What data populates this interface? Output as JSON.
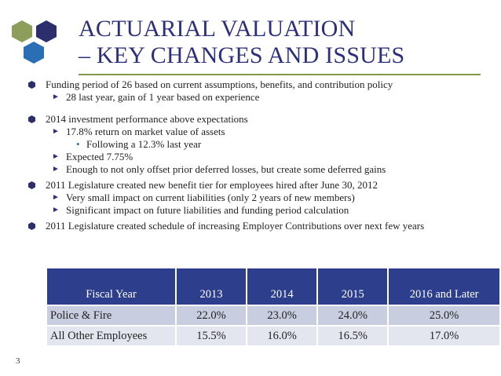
{
  "slide": {
    "title_line1": "ACTUARIAL VALUATION",
    "title_line2": "– KEY CHANGES AND ISSUES",
    "page_number": "3"
  },
  "colors": {
    "title": "#2c2f7c",
    "rule": "#7f9a4f",
    "table_header": "#2c3e8c",
    "row1": "#c8cde0",
    "row2": "#e4e6ef"
  },
  "bullets": [
    {
      "text": "Funding period of 26 based on current assumptions, benefits, and contribution policy",
      "subs": [
        {
          "text": "28 last year, gain of 1 year based on experience"
        }
      ]
    },
    {
      "text": "2014 investment performance above expectations",
      "subs": [
        {
          "text": "17.8% return on market value of assets",
          "subsub": "Following a 12.3% last year"
        },
        {
          "text": "Expected 7.75%"
        },
        {
          "text": "Enough to not only offset prior deferred losses, but create some deferred gains"
        }
      ]
    },
    {
      "text": "2011 Legislature created new benefit tier for employees hired after June 30, 2012",
      "subs": [
        {
          "text": "Very small impact on current liabilities (only 2 years of new members)"
        },
        {
          "text": "Significant impact on future liabilities and funding period calculation"
        }
      ]
    },
    {
      "text": "2011 Legislature created schedule of increasing Employer Contributions over next few years"
    }
  ],
  "table": {
    "headers": [
      "Fiscal Year",
      "2013",
      "2014",
      "2015",
      "2016 and Later"
    ],
    "rows": [
      [
        "Police & Fire",
        "22.0%",
        "23.0%",
        "24.0%",
        "25.0%"
      ],
      [
        "All Other Employees",
        "15.5%",
        "16.0%",
        "16.5%",
        "17.0%"
      ]
    ]
  }
}
